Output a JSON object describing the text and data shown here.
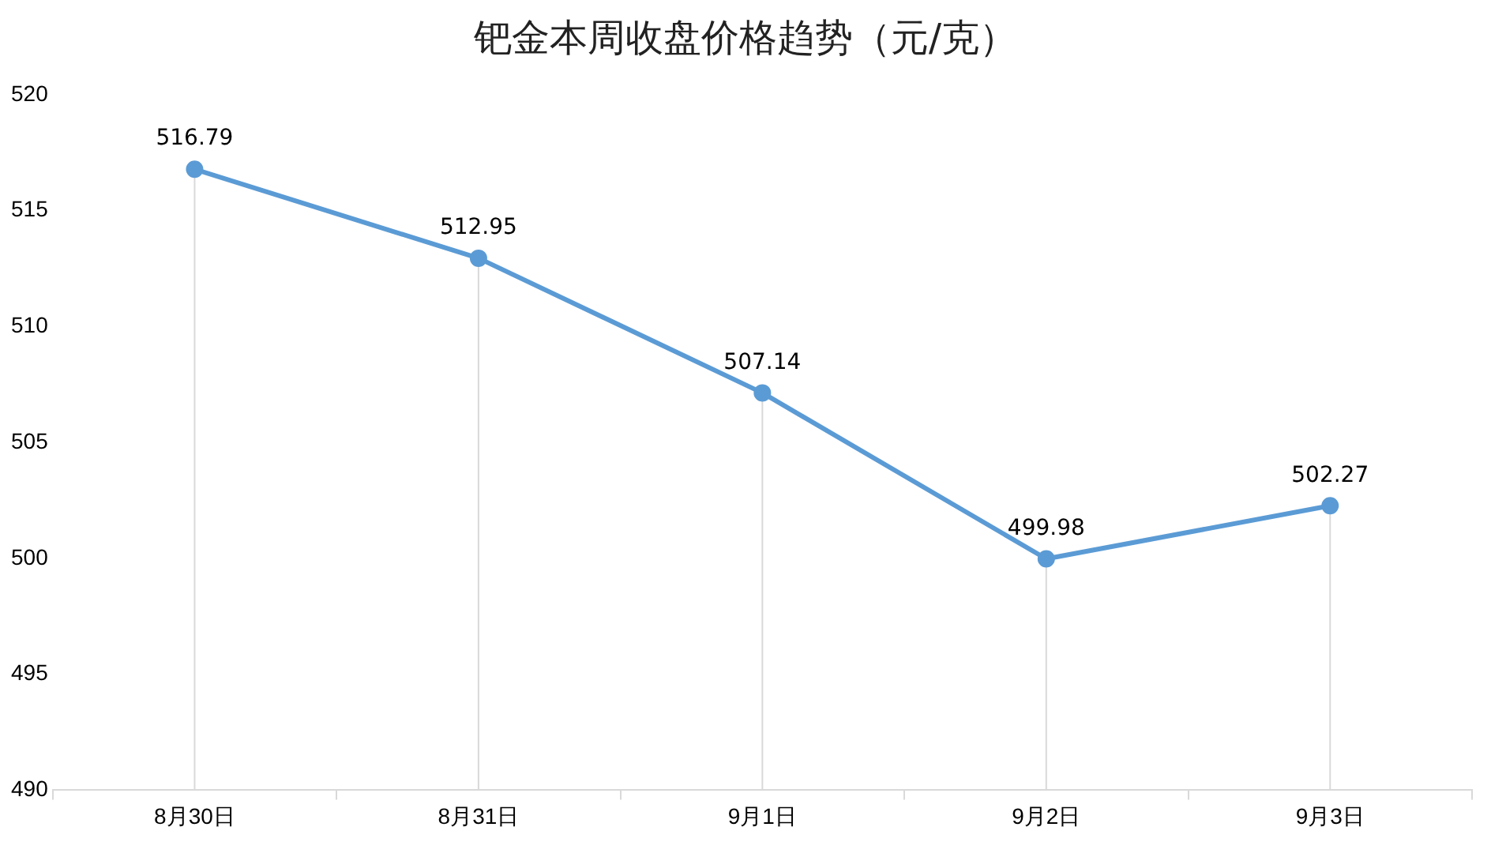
{
  "chart_data": {
    "type": "line",
    "title": "钯金本周收盘价格趋势（元/克）",
    "categories": [
      "8月30日",
      "8月31日",
      "9月1日",
      "9月2日",
      "9月3日"
    ],
    "series": [
      {
        "color": "#5b9bd5",
        "values": [
          516.79,
          512.95,
          507.14,
          499.98,
          502.27
        ]
      }
    ],
    "ylim": [
      490,
      520
    ],
    "yticks": [
      490,
      495,
      500,
      505,
      510,
      515,
      520
    ],
    "grid": "x",
    "legend": false,
    "marker": "circle",
    "line_style": "solid",
    "data_labels": true
  }
}
